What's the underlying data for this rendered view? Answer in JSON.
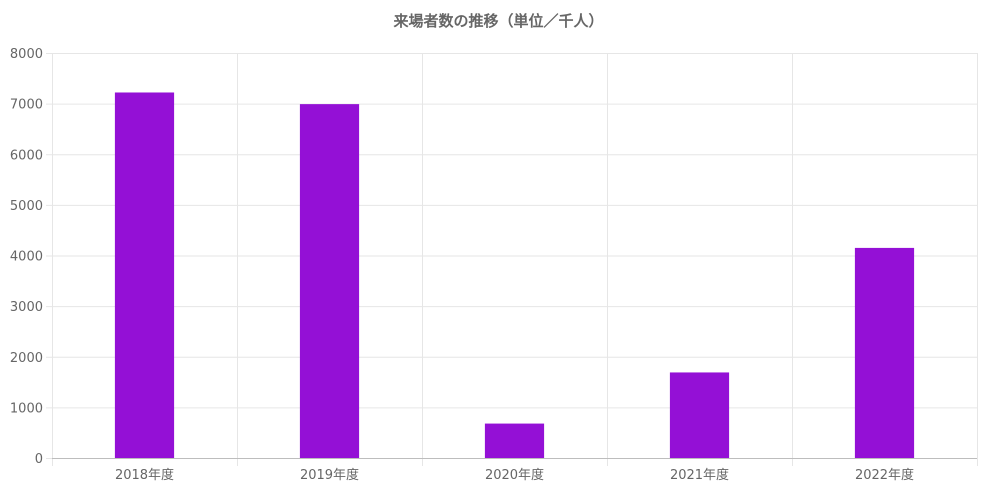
{
  "chart_data": {
    "type": "bar",
    "title": "来場者数の推移（単位／千人）",
    "categories": [
      "2018年度",
      "2019年度",
      "2020年度",
      "2021年度",
      "2022年度"
    ],
    "values": [
      7220,
      6990,
      680,
      1690,
      4150
    ],
    "ylim": [
      0,
      8000
    ],
    "yticks": [
      0,
      1000,
      2000,
      3000,
      4000,
      5000,
      6000,
      7000,
      8000
    ],
    "grid": true,
    "legend": "none",
    "bar_color": "#9410d6",
    "grid_color": "#e6e6e6",
    "axis_color": "#bdbdbd"
  }
}
